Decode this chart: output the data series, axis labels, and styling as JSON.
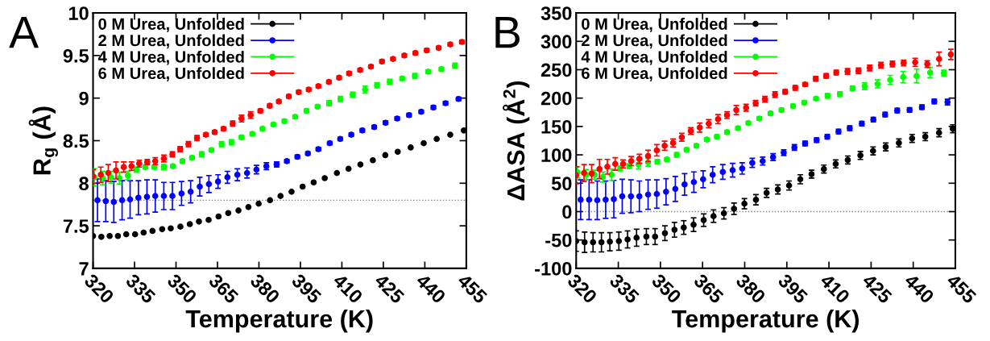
{
  "chart_data": [
    {
      "type": "scatter",
      "xlabel": "Temperature (K)",
      "ylabel": "R$_{g}$ (Å)",
      "annotations": [
        "A"
      ],
      "xlim": [
        320,
        455
      ],
      "xticks": [
        320,
        335,
        350,
        365,
        380,
        395,
        410,
        425,
        440,
        455
      ],
      "ylim": [
        7,
        10
      ],
      "yticks": [
        7,
        {
          "value": 7.5,
          "label": "7.5"
        },
        8,
        {
          "value": 8.5,
          "label": "8.5"
        },
        9,
        {
          "value": 9.5,
          "label": "9.5"
        },
        10
      ],
      "grid": false,
      "legend": "top left",
      "marker": "circle",
      "ref_lines": [
        {
          "axis": "y",
          "value": 7.8,
          "color": "#808080",
          "line_style": "dotted"
        }
      ],
      "series": [
        {
          "name": "0 M Urea, Unfolded",
          "color": "#000000",
          "x": [
            320.0,
            323.0,
            326.0,
            329.0,
            332.0,
            335.2,
            338.3,
            341.5,
            345.0,
            348.1,
            351.6,
            355.0,
            358.3,
            361.8,
            365.4,
            368.9,
            372.6,
            376.2,
            379.9,
            384.0,
            387.8,
            391.8,
            395.8,
            399.8,
            403.8,
            408.2,
            412.4,
            416.7,
            421.2,
            425.7,
            430.2,
            434.9,
            439.6,
            444.3,
            449.2,
            454.1
          ],
          "values": [
            7.38,
            7.37,
            7.38,
            7.38,
            7.4,
            7.4,
            7.42,
            7.44,
            7.46,
            7.47,
            7.49,
            7.52,
            7.55,
            7.57,
            7.61,
            7.65,
            7.68,
            7.72,
            7.76,
            7.8,
            7.85,
            7.9,
            7.96,
            8.01,
            8.06,
            8.12,
            8.17,
            8.22,
            8.27,
            8.33,
            8.37,
            8.42,
            8.47,
            8.52,
            8.57,
            8.62
          ]
        },
        {
          "name": "2 M Urea, Unfolded",
          "color": "#0000ff",
          "x": [
            321.6,
            324.6,
            327.5,
            330.5,
            333.4,
            336.4,
            339.5,
            342.5,
            345.6,
            348.7,
            352.0,
            355.3,
            358.6,
            361.9,
            365.2,
            368.6,
            372.2,
            375.7,
            379.1,
            382.7,
            386.4,
            390.1,
            393.9,
            397.7,
            401.5,
            405.6,
            409.4,
            413.4,
            417.4,
            421.7,
            425.8,
            430.0,
            434.3,
            438.7,
            443.1,
            447.5,
            452.2
          ],
          "values": [
            7.8,
            7.79,
            7.78,
            7.8,
            7.81,
            7.83,
            7.84,
            7.85,
            7.85,
            7.85,
            7.88,
            7.9,
            7.96,
            7.99,
            8.02,
            8.07,
            8.1,
            8.12,
            8.16,
            8.2,
            8.22,
            8.26,
            8.31,
            8.35,
            8.4,
            8.47,
            8.52,
            8.57,
            8.62,
            8.66,
            8.71,
            8.76,
            8.8,
            8.84,
            8.89,
            8.94,
            8.99
          ],
          "errors": [
            0.25,
            0.24,
            0.24,
            0.23,
            0.22,
            0.2,
            0.2,
            0.19,
            0.16,
            0.16,
            0.14,
            0.13,
            0.11,
            0.1,
            0.08,
            0.07,
            0.07,
            0.06,
            0.05,
            0.04,
            0.03,
            0.02,
            0.02,
            0.02,
            0.02,
            0.02,
            0.02,
            0.02,
            0.02,
            0.02,
            0.02,
            0.02,
            0.02,
            0.02,
            0.02,
            0.02,
            0.02
          ]
        },
        {
          "name": "4 M Urea, Unfolded",
          "color": "#00ff00",
          "x": [
            320.5,
            323.5,
            326.5,
            329.5,
            332.6,
            335.7,
            338.9,
            342.2,
            345.6,
            348.9,
            352.3,
            355.8,
            359.3,
            362.8,
            366.5,
            370.1,
            373.7,
            377.6,
            381.3,
            385.2,
            389.2,
            393.1,
            397.2,
            401.2,
            405.4,
            409.5,
            413.9,
            418.4,
            422.7,
            427.3,
            431.8,
            436.4,
            441.2,
            446.0,
            450.9
          ],
          "values": [
            8.07,
            8.06,
            8.07,
            8.06,
            8.09,
            8.16,
            8.19,
            8.19,
            8.19,
            8.2,
            8.26,
            8.3,
            8.34,
            8.39,
            8.46,
            8.48,
            8.54,
            8.58,
            8.64,
            8.69,
            8.73,
            8.78,
            8.85,
            8.9,
            8.94,
            8.99,
            9.04,
            9.1,
            9.15,
            9.19,
            9.23,
            9.26,
            9.31,
            9.34,
            9.38
          ],
          "errors": [
            0.1,
            0.08,
            0.07,
            0.07,
            0.05,
            0.03,
            0.02,
            0.02,
            0.03,
            0.02,
            0.02,
            0.02,
            0.03,
            0.02,
            0.03,
            0.03,
            0.02,
            0.02,
            0.02,
            0.02,
            0.02,
            0.02,
            0.02,
            0.02,
            0.03,
            0.03,
            0.03,
            0.04,
            0.03,
            0.03,
            0.02,
            0.03,
            0.02,
            0.02,
            0.03
          ]
        },
        {
          "name": "6 M Urea, Unfolded",
          "color": "#ff0000",
          "x": [
            320.0,
            322.8,
            325.5,
            328.3,
            331.1,
            333.9,
            336.7,
            339.6,
            342.5,
            345.6,
            348.7,
            351.5,
            354.5,
            357.6,
            360.8,
            364.0,
            367.2,
            370.5,
            373.7,
            377.0,
            380.5,
            383.9,
            387.2,
            390.8,
            394.4,
            398.0,
            401.5,
            405.3,
            409.0,
            412.6,
            416.6,
            420.5,
            424.5,
            428.5,
            432.6,
            436.6,
            440.7,
            445.0,
            449.2,
            453.4
          ],
          "values": [
            8.08,
            8.1,
            8.12,
            8.15,
            8.19,
            8.2,
            8.23,
            8.25,
            8.26,
            8.29,
            8.34,
            8.4,
            8.46,
            8.53,
            8.57,
            8.6,
            8.64,
            8.7,
            8.76,
            8.8,
            8.85,
            8.91,
            8.96,
            9.02,
            9.07,
            9.1,
            9.14,
            9.19,
            9.24,
            9.29,
            9.33,
            9.37,
            9.43,
            9.46,
            9.5,
            9.53,
            9.56,
            9.59,
            9.63,
            9.66
          ],
          "errors": [
            0.08,
            0.09,
            0.1,
            0.1,
            0.06,
            0.05,
            0.04,
            0.03,
            0.04,
            0.04,
            0.03,
            0.03,
            0.03,
            0.03,
            0.02,
            0.02,
            0.02,
            0.03,
            0.04,
            0.04,
            0.02,
            0.02,
            0.02,
            0.02,
            0.02,
            0.02,
            0.02,
            0.02,
            0.02,
            0.02,
            0.02,
            0.02,
            0.02,
            0.02,
            0.02,
            0.02,
            0.02,
            0.02,
            0.02,
            0.02
          ]
        }
      ]
    },
    {
      "type": "scatter",
      "xlabel": "Temperature (K)",
      "ylabel": "ΔASA (Å$^{2}$)",
      "annotations": [
        "B"
      ],
      "xlim": [
        320,
        455
      ],
      "xticks": [
        320,
        335,
        350,
        365,
        380,
        395,
        410,
        425,
        440,
        455
      ],
      "ylim": [
        -100,
        350
      ],
      "yticks": [
        -100,
        -50,
        0,
        50,
        100,
        150,
        200,
        250,
        300,
        350
      ],
      "grid": false,
      "legend": "top left",
      "marker": "circle",
      "ref_lines": [
        {
          "axis": "y",
          "value": 0,
          "color": "#808080",
          "line_style": "dotted"
        }
      ],
      "series": [
        {
          "name": "0 M Urea, Unfolded",
          "color": "#000000",
          "x": [
            320.0,
            323.0,
            326.0,
            329.0,
            332.0,
            335.2,
            338.3,
            341.5,
            345.0,
            348.1,
            351.6,
            355.0,
            358.3,
            361.8,
            365.4,
            368.9,
            372.6,
            376.2,
            379.9,
            384.0,
            387.8,
            391.8,
            395.8,
            399.8,
            403.8,
            408.2,
            412.4,
            416.7,
            421.2,
            425.7,
            430.2,
            434.9,
            439.6,
            444.3,
            449.2,
            454.1
          ],
          "values": [
            -52,
            -54,
            -54,
            -54,
            -53,
            -52,
            -49,
            -46,
            -44,
            -44,
            -38,
            -32,
            -28,
            -23,
            -15,
            -8,
            -3,
            5,
            14,
            21,
            33,
            39,
            46,
            57,
            66,
            75,
            84,
            91,
            99,
            107,
            114,
            121,
            129,
            132,
            139,
            146
          ],
          "errors": [
            18,
            18,
            17,
            17,
            16,
            16,
            15,
            15,
            14,
            14,
            13,
            13,
            12,
            12,
            11,
            11,
            10,
            10,
            9,
            9,
            8,
            8,
            8,
            8,
            7,
            7,
            7,
            7,
            7,
            7,
            7,
            7,
            7,
            7,
            7,
            7
          ]
        },
        {
          "name": "2 M Urea, Unfolded",
          "color": "#0000ff",
          "x": [
            321.6,
            324.6,
            327.5,
            330.5,
            333.4,
            336.4,
            339.5,
            342.5,
            345.6,
            348.7,
            352.0,
            355.3,
            358.6,
            361.9,
            365.2,
            368.6,
            372.2,
            375.7,
            379.1,
            382.7,
            386.4,
            390.1,
            393.9,
            397.7,
            401.5,
            405.6,
            409.4,
            413.4,
            417.4,
            421.7,
            425.8,
            430.0,
            434.3,
            438.7,
            443.1,
            447.5,
            452.2
          ],
          "values": [
            21,
            21,
            20,
            21,
            22,
            27,
            27,
            27,
            30,
            31,
            35,
            40,
            48,
            52,
            57,
            65,
            70,
            73,
            76,
            86,
            89,
            96,
            104,
            113,
            120,
            126,
            132,
            141,
            147,
            155,
            162,
            171,
            178,
            179,
            184,
            194,
            193
          ],
          "errors": [
            35,
            35,
            34,
            33,
            33,
            30,
            29,
            27,
            26,
            25,
            23,
            22,
            19,
            18,
            15,
            14,
            13,
            12,
            10,
            8,
            7,
            6,
            5,
            5,
            4,
            4,
            4,
            4,
            4,
            4,
            4,
            4,
            4,
            4,
            4,
            4,
            5
          ]
        },
        {
          "name": "4 M Urea, Unfolded",
          "color": "#00ff00",
          "x": [
            320.5,
            323.5,
            326.5,
            329.5,
            332.6,
            335.7,
            338.9,
            342.2,
            345.6,
            348.9,
            352.3,
            355.8,
            359.3,
            362.8,
            366.5,
            370.1,
            373.7,
            377.6,
            381.3,
            385.2,
            389.2,
            393.1,
            397.2,
            401.2,
            405.4,
            409.5,
            413.9,
            418.4,
            422.7,
            427.3,
            431.8,
            436.4,
            441.2,
            446.0,
            450.9
          ],
          "values": [
            69,
            65,
            65,
            61,
            65,
            76,
            80,
            83,
            87,
            88,
            92,
            100,
            109,
            116,
            127,
            132,
            140,
            147,
            156,
            164,
            173,
            179,
            186,
            192,
            199,
            204,
            207,
            217,
            221,
            225,
            232,
            237,
            239,
            245,
            244
          ],
          "errors": [
            10,
            9,
            8,
            9,
            10,
            4,
            4,
            8,
            7,
            4,
            3,
            4,
            3,
            3,
            3,
            3,
            3,
            3,
            3,
            3,
            3,
            3,
            3,
            3,
            3,
            4,
            4,
            4,
            6,
            7,
            8,
            10,
            12,
            9,
            5
          ]
        },
        {
          "name": "6 M Urea, Unfolded",
          "color": "#ff0000",
          "x": [
            320.0,
            322.8,
            325.5,
            328.3,
            331.1,
            333.9,
            336.7,
            339.6,
            342.5,
            345.6,
            348.7,
            351.5,
            354.5,
            357.6,
            360.8,
            364.0,
            367.2,
            370.5,
            373.7,
            377.0,
            380.5,
            383.9,
            387.2,
            390.8,
            394.4,
            398.0,
            401.5,
            405.3,
            409.0,
            412.6,
            416.6,
            420.5,
            424.5,
            428.5,
            432.6,
            436.6,
            440.7,
            445.0,
            449.2,
            453.4
          ],
          "values": [
            64,
            68,
            67,
            75,
            79,
            84,
            84,
            89,
            93,
            98,
            108,
            116,
            121,
            131,
            142,
            148,
            155,
            163,
            170,
            179,
            183,
            191,
            198,
            206,
            211,
            218,
            224,
            234,
            239,
            245,
            247,
            248,
            253,
            258,
            260,
            262,
            263,
            260,
            269,
            277
          ],
          "errors": [
            15,
            15,
            16,
            17,
            13,
            11,
            7,
            8,
            8,
            10,
            10,
            8,
            7,
            7,
            6,
            8,
            7,
            8,
            6,
            8,
            6,
            5,
            5,
            5,
            4,
            4,
            3,
            4,
            4,
            4,
            5,
            5,
            5,
            5,
            5,
            5,
            7,
            6,
            12,
            9
          ]
        }
      ]
    }
  ]
}
